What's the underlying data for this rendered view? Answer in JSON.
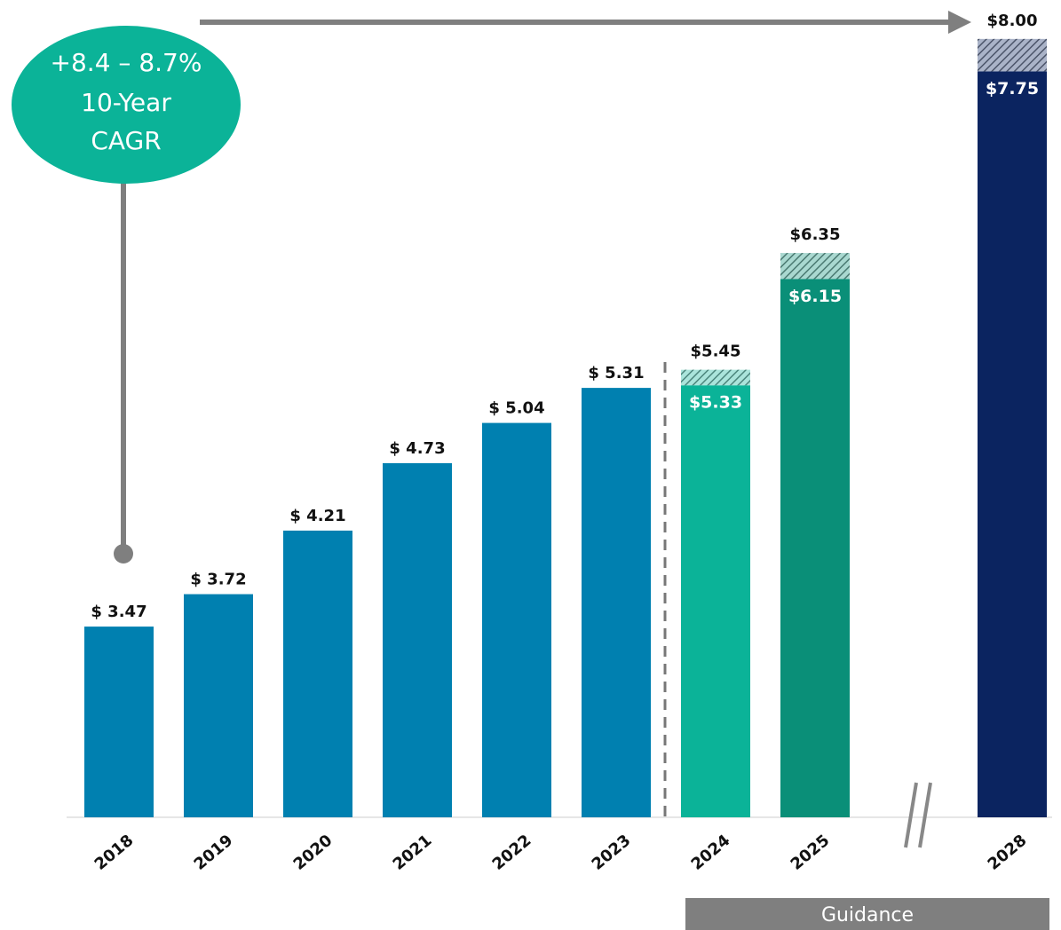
{
  "chart_data": {
    "type": "range_bar",
    "categories": [
      "2018",
      "2019",
      "2020",
      "2021",
      "2022",
      "2023",
      "2024",
      "2025",
      null,
      "2028"
    ],
    "values": [
      3.47,
      3.72,
      4.21,
      4.73,
      5.04,
      5.31,
      5.33,
      6.15,
      null,
      7.75
    ],
    "value_labels": [
      "$ 3.47",
      "$ 3.72",
      "$ 4.21",
      "$ 4.73",
      "$ 5.04",
      "$ 5.31",
      "$5.33",
      "$6.15",
      null,
      "$7.75"
    ],
    "high": [
      null,
      null,
      null,
      null,
      null,
      null,
      5.45,
      6.35,
      null,
      8.0
    ],
    "high_labels": [
      null,
      null,
      null,
      null,
      null,
      null,
      "$5.45",
      "$6.35",
      null,
      "$8.00"
    ],
    "colors": [
      "#0080b0",
      "#0080b0",
      "#0080b0",
      "#0080b0",
      "#0080b0",
      "#0080b0",
      "#0bb398",
      "#0a8f78",
      null,
      "#0b2460"
    ],
    "ylim": [
      2,
      8.3
    ],
    "annotations": {
      "cagr": [
        "+8.4 – 8.7%",
        "10-Year",
        "CAGR"
      ],
      "guidance": "Guidance",
      "footnote": "1"
    }
  }
}
